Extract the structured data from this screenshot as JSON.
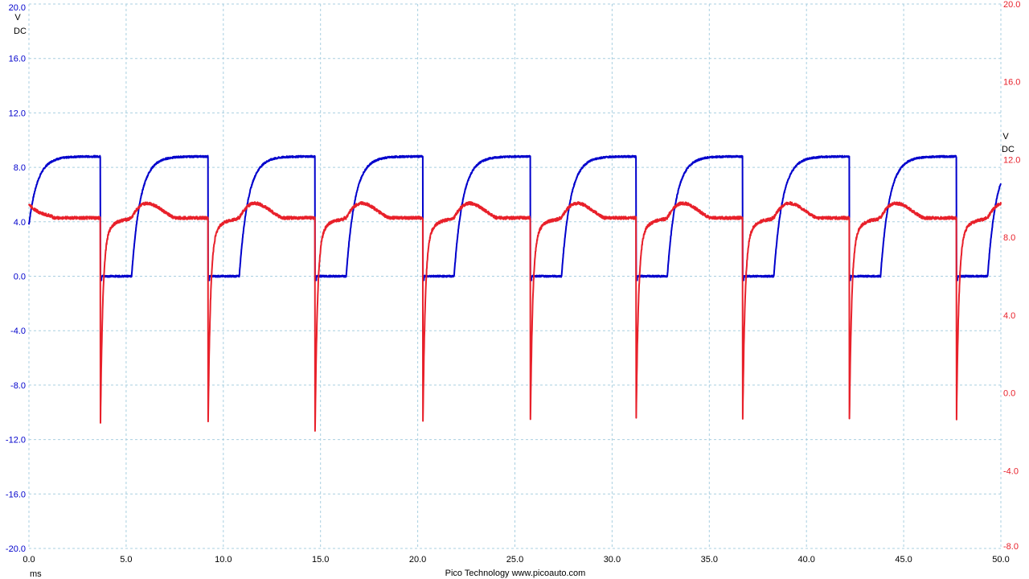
{
  "chart_data": {
    "type": "line",
    "x": {
      "unit": "ms",
      "range": [
        0,
        50
      ],
      "ticks": [
        "0.0",
        "5.0",
        "10.0",
        "15.0",
        "20.0",
        "25.0",
        "30.0",
        "35.0",
        "40.0",
        "45.0",
        "50.0"
      ]
    },
    "y_left": {
      "units": [
        "V",
        "DC"
      ],
      "range": [
        -20,
        20
      ],
      "color": "#0000cc",
      "ticks": [
        "20.0",
        "16.0",
        "12.0",
        "8.0",
        "4.0",
        "0.0",
        "-4.0",
        "-8.0",
        "-12.0",
        "-16.0",
        "-20.0"
      ]
    },
    "y_right": {
      "units": [
        "V",
        "DC"
      ],
      "range": [
        -8,
        20
      ],
      "color": "#e8202a",
      "ticks": [
        "20.0",
        "16.0",
        "12.0",
        "8.0",
        "4.0",
        "0.0",
        "-4.0",
        "-8.0"
      ]
    },
    "grid": true,
    "series": [
      {
        "axis": "left",
        "color": "#0000cc",
        "signal": "square wave 0 V to 8.8 V, exponential rise after each ~1.6 ms low period",
        "falling_edges_ms": [
          3.68,
          9.22,
          14.72,
          20.27,
          25.8,
          31.24,
          36.72,
          42.21,
          47.72
        ],
        "rise_start_ms": [
          5.28,
          10.82,
          16.32,
          21.87,
          27.4,
          32.84,
          38.32,
          43.81,
          49.32
        ],
        "high_v": 8.8,
        "low_v": 0.0,
        "start_v": 3.8
      },
      {
        "axis": "right",
        "color": "#e8202a",
        "signal": "baseline about 9 V with negative spikes at each falling edge",
        "baseline_v": 9.0,
        "bump_v": 9.8,
        "spike_times_ms": [
          3.68,
          9.22,
          14.72,
          20.27,
          25.8,
          31.24,
          36.72,
          42.21,
          47.72
        ],
        "spike_min_v": [
          -0.4,
          -0.2,
          -0.8,
          -0.2,
          -0.1,
          -0.1,
          -0.1,
          -0.1,
          -0.1
        ]
      }
    ]
  },
  "footer": {
    "brand": "Pico Technology  www.picoauto.com"
  }
}
